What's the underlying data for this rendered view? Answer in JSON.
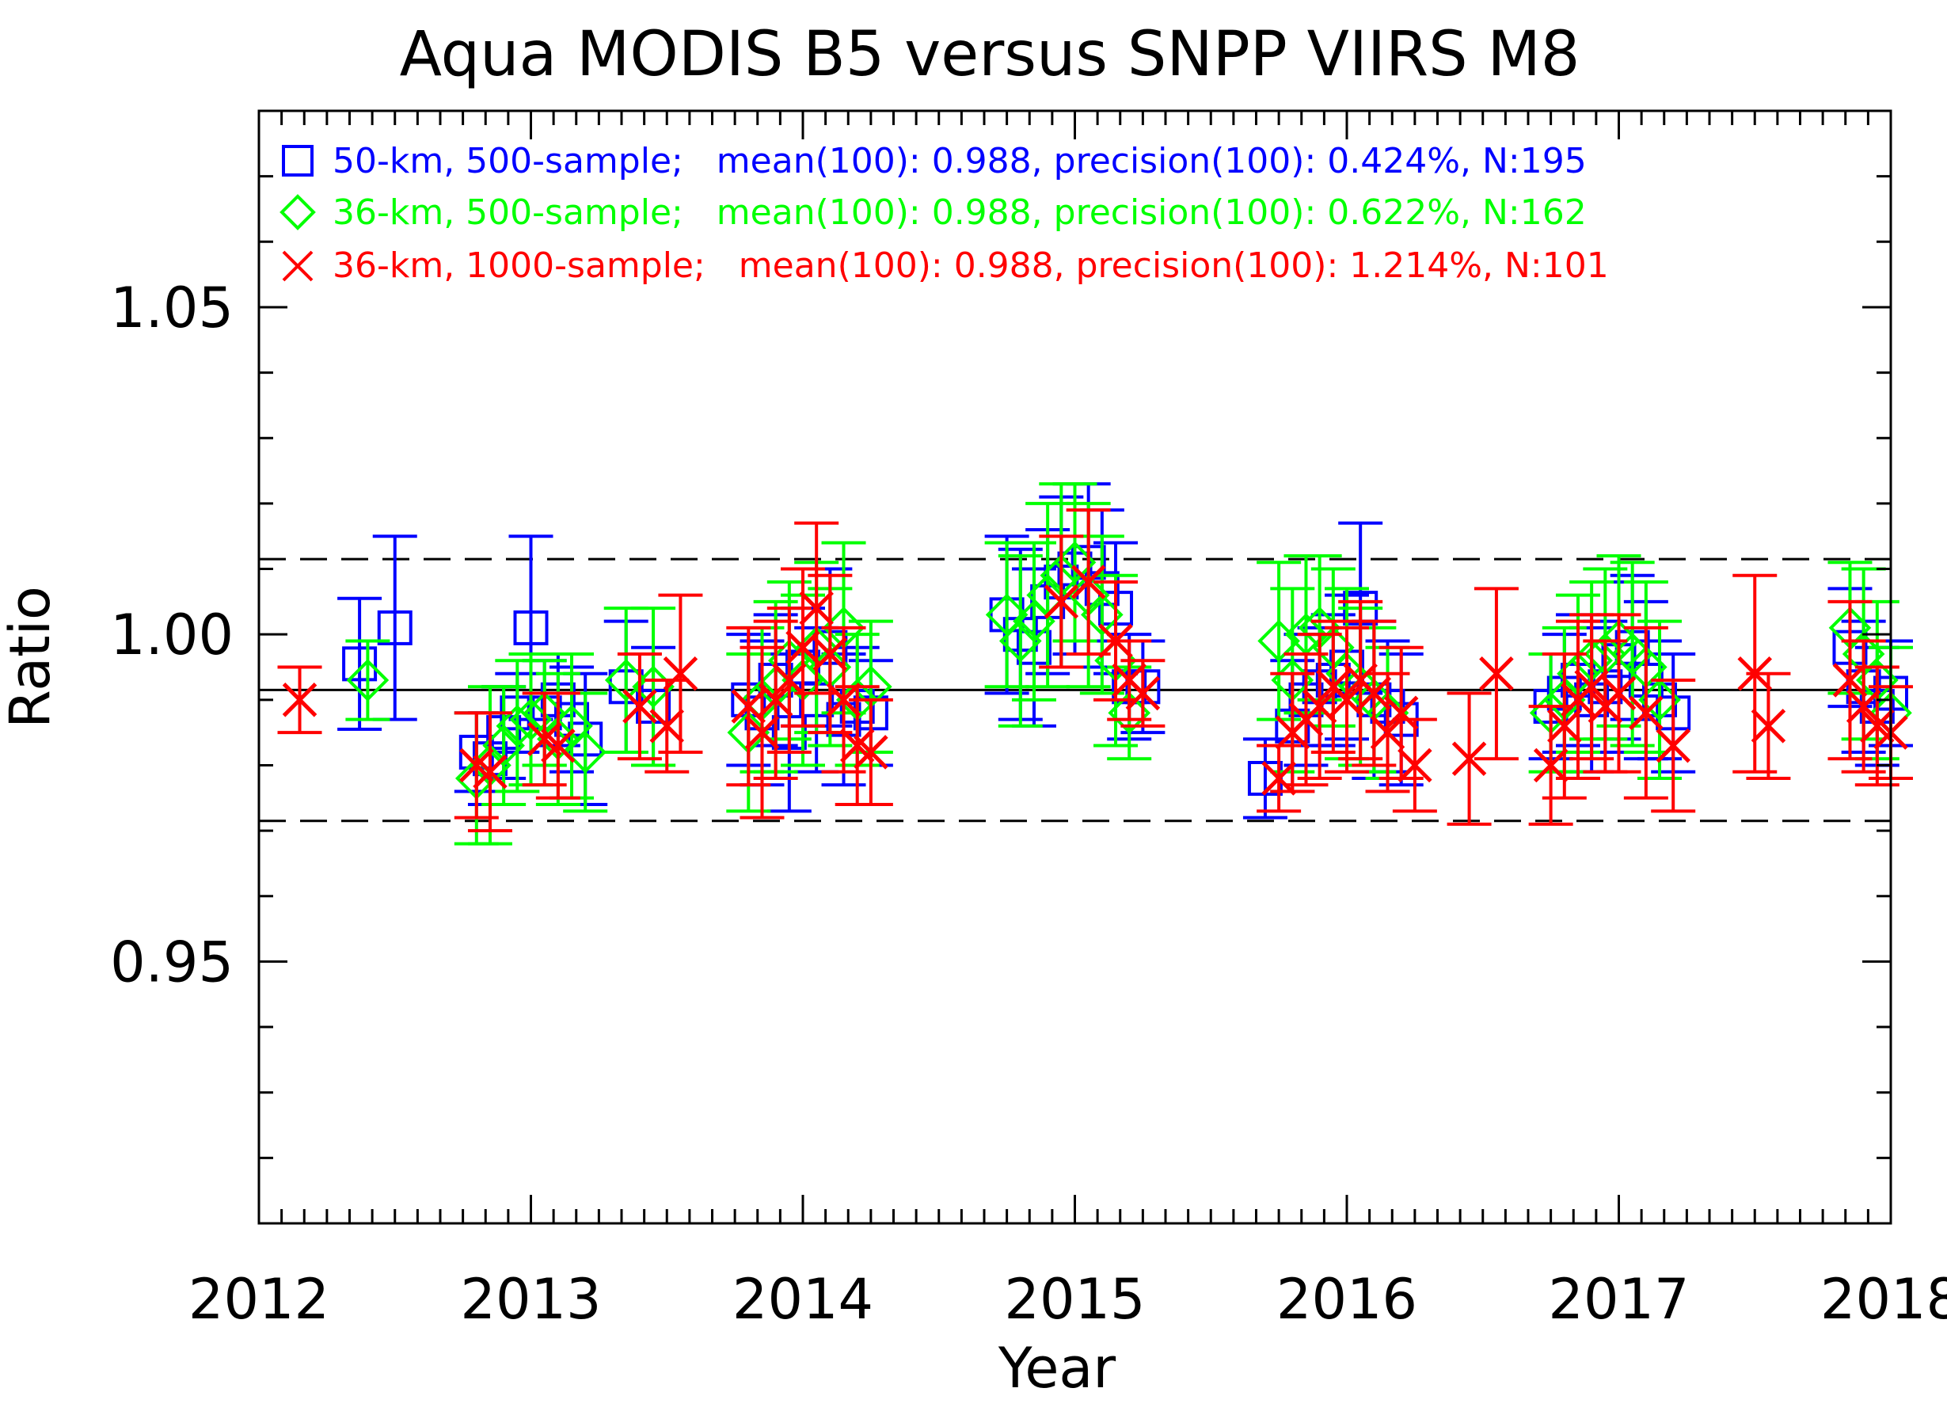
{
  "chart_data": {
    "type": "scatter",
    "title": "Aqua MODIS B5 versus SNPP VIIRS M8",
    "xlabel": "Year",
    "ylabel": "Ratio",
    "xlim": [
      2012,
      2018
    ],
    "ylim": [
      0.91,
      1.08
    ],
    "x_ticks": [
      2012,
      2013,
      2014,
      2015,
      2016,
      2017,
      2018
    ],
    "x_tick_labels": [
      "2012",
      "2013",
      "2014",
      "2015",
      "2016",
      "2017",
      "2018"
    ],
    "y_ticks": [
      0.95,
      1.0,
      1.05
    ],
    "y_tick_labels": [
      "0.95",
      "1.00",
      "1.05"
    ],
    "reference_lines": {
      "mean": 0.9915,
      "upper": 1.0115,
      "lower": 0.9715
    },
    "series": [
      {
        "name": "50-km, 500-sample",
        "legend": "50-km, 500-sample;   mean(100): 0.988, precision(100): 0.424%, N:195",
        "marker": "square",
        "color": "#0000ff",
        "points": [
          [
            2012.37,
            0.9955,
            0.01
          ],
          [
            2012.5,
            1.001,
            0.014
          ],
          [
            2012.8,
            0.982,
            0.006
          ],
          [
            2012.85,
            0.981,
            0.007
          ],
          [
            2012.9,
            0.985,
            0.007
          ],
          [
            2012.95,
            0.988,
            0.006
          ],
          [
            2013.0,
            1.001,
            0.014
          ],
          [
            2013.05,
            0.988,
            0.008
          ],
          [
            2013.1,
            0.99,
            0.007
          ],
          [
            2013.15,
            0.987,
            0.008
          ],
          [
            2013.2,
            0.984,
            0.01
          ],
          [
            2013.35,
            0.992,
            0.01
          ],
          [
            2013.45,
            0.989,
            0.009
          ],
          [
            2013.8,
            0.99,
            0.01
          ],
          [
            2013.85,
            0.988,
            0.011
          ],
          [
            2013.9,
            0.993,
            0.01
          ],
          [
            2013.95,
            0.985,
            0.012
          ],
          [
            2014.0,
            0.995,
            0.009
          ],
          [
            2014.05,
            0.99,
            0.011
          ],
          [
            2014.1,
            0.998,
            0.012
          ],
          [
            2014.15,
            0.987,
            0.01
          ],
          [
            2014.2,
            0.989,
            0.009
          ],
          [
            2014.25,
            0.988,
            0.008
          ],
          [
            2014.75,
            1.003,
            0.012
          ],
          [
            2014.8,
            1.0,
            0.013
          ],
          [
            2014.85,
            0.998,
            0.012
          ],
          [
            2014.9,
            1.005,
            0.011
          ],
          [
            2014.95,
            1.008,
            0.013
          ],
          [
            2015.0,
            1.01,
            0.013
          ],
          [
            2015.05,
            1.011,
            0.012
          ],
          [
            2015.1,
            1.007,
            0.012
          ],
          [
            2015.15,
            1.004,
            0.01
          ],
          [
            2015.2,
            0.992,
            0.008
          ],
          [
            2015.25,
            0.992,
            0.007
          ],
          [
            2015.7,
            0.978,
            0.006
          ],
          [
            2015.8,
            0.986,
            0.01
          ],
          [
            2015.85,
            0.99,
            0.01
          ],
          [
            2015.9,
            0.992,
            0.009
          ],
          [
            2015.95,
            0.993,
            0.01
          ],
          [
            2016.0,
            0.995,
            0.011
          ],
          [
            2016.05,
            1.004,
            0.013
          ],
          [
            2016.1,
            0.99,
            0.012
          ],
          [
            2016.15,
            0.989,
            0.01
          ],
          [
            2016.2,
            0.987,
            0.01
          ],
          [
            2016.75,
            0.989,
            0.008
          ],
          [
            2016.8,
            0.991,
            0.009
          ],
          [
            2016.85,
            0.993,
            0.01
          ],
          [
            2016.9,
            0.99,
            0.011
          ],
          [
            2016.95,
            0.992,
            0.01
          ],
          [
            2017.0,
            0.996,
            0.012
          ],
          [
            2017.05,
            0.998,
            0.011
          ],
          [
            2017.1,
            0.993,
            0.012
          ],
          [
            2017.15,
            0.99,
            0.009
          ],
          [
            2017.2,
            0.988,
            0.009
          ],
          [
            2017.85,
            0.998,
            0.009
          ],
          [
            2017.9,
            0.992,
            0.01
          ],
          [
            2017.95,
            0.989,
            0.009
          ],
          [
            2018.0,
            0.991,
            0.008
          ]
        ]
      },
      {
        "name": "36-km, 500-sample",
        "legend": "36-km, 500-sample;   mean(100): 0.988, precision(100): 0.622%, N:162",
        "marker": "diamond",
        "color": "#00ff00",
        "points": [
          [
            2012.4,
            0.993,
            0.006
          ],
          [
            2012.8,
            0.978,
            0.01
          ],
          [
            2012.85,
            0.98,
            0.012
          ],
          [
            2012.9,
            0.983,
            0.009
          ],
          [
            2012.95,
            0.986,
            0.01
          ],
          [
            2013.0,
            0.987,
            0.01
          ],
          [
            2013.05,
            0.988,
            0.008
          ],
          [
            2013.1,
            0.984,
            0.01
          ],
          [
            2013.15,
            0.986,
            0.011
          ],
          [
            2013.2,
            0.982,
            0.009
          ],
          [
            2013.35,
            0.993,
            0.011
          ],
          [
            2013.45,
            0.992,
            0.012
          ],
          [
            2013.8,
            0.985,
            0.012
          ],
          [
            2013.85,
            0.99,
            0.011
          ],
          [
            2013.9,
            0.992,
            0.013
          ],
          [
            2013.95,
            0.996,
            0.012
          ],
          [
            2014.0,
            0.993,
            0.013
          ],
          [
            2014.05,
            0.998,
            0.013
          ],
          [
            2014.1,
            0.995,
            0.012
          ],
          [
            2014.15,
            1.001,
            0.013
          ],
          [
            2014.2,
            0.99,
            0.01
          ],
          [
            2014.25,
            0.992,
            0.01
          ],
          [
            2014.75,
            1.003,
            0.011
          ],
          [
            2014.8,
            0.999,
            0.013
          ],
          [
            2014.85,
            1.002,
            0.012
          ],
          [
            2014.9,
            1.006,
            0.014
          ],
          [
            2014.95,
            1.009,
            0.014
          ],
          [
            2015.0,
            1.011,
            0.012
          ],
          [
            2015.05,
            1.006,
            0.014
          ],
          [
            2015.1,
            1.003,
            0.012
          ],
          [
            2015.15,
            0.996,
            0.013
          ],
          [
            2015.2,
            0.988,
            0.007
          ],
          [
            2015.75,
            0.999,
            0.012
          ],
          [
            2015.8,
            0.993,
            0.014
          ],
          [
            2015.85,
            1.0,
            0.012
          ],
          [
            2015.9,
            1.001,
            0.011
          ],
          [
            2015.95,
            0.998,
            0.012
          ],
          [
            2016.0,
            0.994,
            0.013
          ],
          [
            2016.05,
            0.992,
            0.012
          ],
          [
            2016.1,
            0.99,
            0.011
          ],
          [
            2016.15,
            0.988,
            0.01
          ],
          [
            2016.75,
            0.988,
            0.009
          ],
          [
            2016.8,
            0.99,
            0.011
          ],
          [
            2016.85,
            0.994,
            0.012
          ],
          [
            2016.9,
            0.996,
            0.012
          ],
          [
            2016.95,
            0.997,
            0.013
          ],
          [
            2017.0,
            0.999,
            0.013
          ],
          [
            2017.05,
            0.997,
            0.014
          ],
          [
            2017.1,
            0.995,
            0.013
          ],
          [
            2017.15,
            0.99,
            0.012
          ],
          [
            2017.85,
            1.001,
            0.01
          ],
          [
            2017.9,
            0.997,
            0.013
          ],
          [
            2017.95,
            0.993,
            0.012
          ],
          [
            2018.0,
            0.988,
            0.01
          ]
        ]
      },
      {
        "name": "36-km, 1000-sample",
        "legend": "36-km, 1000-sample;   mean(100): 0.988, precision(100): 1.214%, N:101",
        "marker": "x",
        "color": "#ff0000",
        "points": [
          [
            2012.15,
            0.99,
            0.005
          ],
          [
            2012.8,
            0.98,
            0.008
          ],
          [
            2012.85,
            0.979,
            0.009
          ],
          [
            2013.05,
            0.984,
            0.007
          ],
          [
            2013.1,
            0.983,
            0.008
          ],
          [
            2013.4,
            0.989,
            0.008
          ],
          [
            2013.5,
            0.986,
            0.007
          ],
          [
            2013.55,
            0.994,
            0.012
          ],
          [
            2013.8,
            0.989,
            0.012
          ],
          [
            2013.85,
            0.985,
            0.013
          ],
          [
            2013.9,
            0.99,
            0.012
          ],
          [
            2013.95,
            0.993,
            0.011
          ],
          [
            2014.0,
            0.998,
            0.012
          ],
          [
            2014.05,
            1.004,
            0.013
          ],
          [
            2014.1,
            0.997,
            0.012
          ],
          [
            2014.15,
            0.99,
            0.011
          ],
          [
            2014.2,
            0.983,
            0.009
          ],
          [
            2014.25,
            0.982,
            0.008
          ],
          [
            2014.95,
            1.005,
            0.01
          ],
          [
            2015.05,
            1.008,
            0.011
          ],
          [
            2015.15,
            0.999,
            0.009
          ],
          [
            2015.2,
            0.993,
            0.006
          ],
          [
            2015.25,
            0.991,
            0.005
          ],
          [
            2015.75,
            0.978,
            0.005
          ],
          [
            2015.8,
            0.985,
            0.009
          ],
          [
            2015.85,
            0.987,
            0.01
          ],
          [
            2015.9,
            0.989,
            0.011
          ],
          [
            2015.95,
            0.992,
            0.01
          ],
          [
            2016.0,
            0.99,
            0.011
          ],
          [
            2016.05,
            0.993,
            0.012
          ],
          [
            2016.1,
            0.991,
            0.011
          ],
          [
            2016.15,
            0.985,
            0.009
          ],
          [
            2016.2,
            0.988,
            0.01
          ],
          [
            2016.25,
            0.98,
            0.007
          ],
          [
            2016.45,
            0.981,
            0.01
          ],
          [
            2016.55,
            0.994,
            0.013
          ],
          [
            2016.75,
            0.98,
            0.009
          ],
          [
            2016.8,
            0.986,
            0.011
          ],
          [
            2016.85,
            0.99,
            0.012
          ],
          [
            2016.9,
            0.992,
            0.011
          ],
          [
            2016.95,
            0.989,
            0.01
          ],
          [
            2017.0,
            0.991,
            0.012
          ],
          [
            2017.1,
            0.988,
            0.013
          ],
          [
            2017.2,
            0.983,
            0.01
          ],
          [
            2017.5,
            0.994,
            0.015
          ],
          [
            2017.55,
            0.986,
            0.008
          ],
          [
            2017.85,
            0.993,
            0.012
          ],
          [
            2017.9,
            0.989,
            0.01
          ],
          [
            2017.95,
            0.986,
            0.009
          ],
          [
            2018.0,
            0.985,
            0.007
          ]
        ]
      }
    ]
  }
}
